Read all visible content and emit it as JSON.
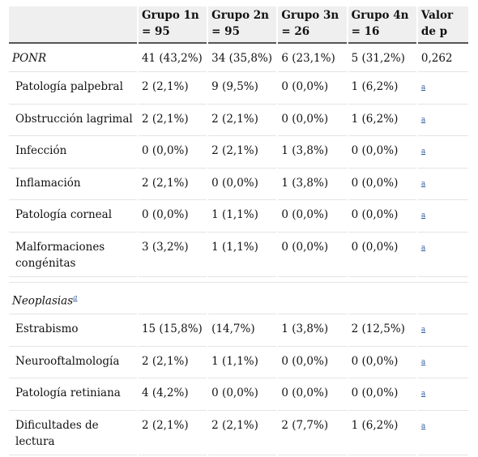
{
  "headers": [
    "",
    "Grupo 1n = 95",
    "Grupo 2n = 95",
    "Grupo 3n = 26",
    "Grupo 4n = 16",
    "Valor de p"
  ],
  "footnote_mark": "a",
  "sections": [
    {
      "title": "PONR",
      "title_note": "",
      "values": [
        "41 (43,2%)",
        "34 (35,8%)",
        "6 (23,1%)",
        "5 (31,2%)",
        "0,262"
      ],
      "rows": [
        {
          "label": "Patología palpebral",
          "values": [
            "2 (2,1%)",
            "9 (9,5%)",
            "0 (0,0%)",
            "1 (6,2%)"
          ]
        },
        {
          "label": "Obstrucción lagrimal",
          "values": [
            "2 (2,1%)",
            "2 (2,1%)",
            "0 (0,0%)",
            "1 (6,2%)"
          ]
        },
        {
          "label": "Infección",
          "values": [
            "0 (0,0%)",
            "2 (2,1%)",
            "1 (3,8%)",
            "0 (0,0%)"
          ]
        },
        {
          "label": "Inflamación",
          "values": [
            "2 (2,1%)",
            "0 (0,0%)",
            "1 (3,8%)",
            "0 (0,0%)"
          ]
        },
        {
          "label": "Patología corneal",
          "values": [
            "0 (0,0%)",
            "1 (1,1%)",
            "0 (0,0%)",
            "0 (0,0%)"
          ]
        },
        {
          "label": "Malformaciones congénitas",
          "values": [
            "3 (3,2%)",
            "1 (1,1%)",
            "0 (0,0%)",
            "0 (0,0%)"
          ]
        }
      ]
    },
    {
      "title": "Neoplasias",
      "title_note": "a",
      "values": [
        "",
        "",
        "",
        "",
        ""
      ],
      "rows": [
        {
          "label": "Estrabismo",
          "values": [
            "15 (15,8%)",
            "(14,7%)",
            "1 (3,8%)",
            "2 (12,5%)"
          ]
        },
        {
          "label": "Neurooftalmología",
          "values": [
            "2 (2,1%)",
            "1 (1,1%)",
            "0 (0,0%)",
            "0 (0,0%)"
          ]
        },
        {
          "label": "Patología retiniana",
          "values": [
            "4 (4,2%)",
            "0 (0,0%)",
            "0 (0,0%)",
            "0 (0,0%)"
          ]
        },
        {
          "label": "Dificultades de lectura",
          "values": [
            "2 (2,1%)",
            "2 (2,1%)",
            "2 (7,7%)",
            "1 (6,2%)"
          ]
        }
      ]
    }
  ]
}
